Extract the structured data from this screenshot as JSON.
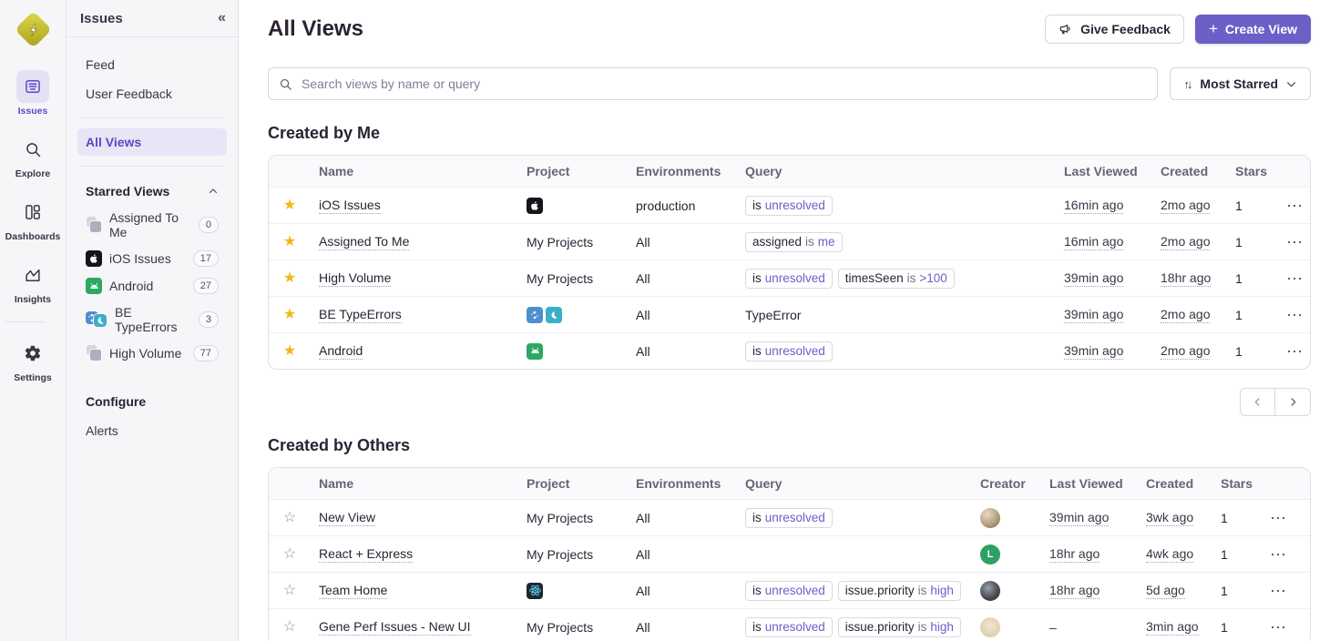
{
  "palette": {
    "accent": "#6C5FC7",
    "accent_text": "#584AC0",
    "star_filled": "#F2B712",
    "chip_value_text": "#6A5FC8",
    "sidebar_bg": "#F6F5F8"
  },
  "left_rail": {
    "logo_icon": "sentry-bolt-logo",
    "items": [
      {
        "label": "Issues",
        "icon": "issues",
        "active": true
      },
      {
        "label": "Explore",
        "icon": "explore",
        "active": false
      },
      {
        "label": "Dashboards",
        "icon": "dashboards",
        "active": false
      },
      {
        "label": "Insights",
        "icon": "insights",
        "active": false
      },
      {
        "label": "Settings",
        "icon": "settings",
        "active": false,
        "divider_before": true
      }
    ]
  },
  "sidebar": {
    "title": "Issues",
    "collapse_icon": "chevrons-left",
    "items_top": [
      "Feed",
      "User Feedback"
    ],
    "all_views_label": "All Views",
    "starred": {
      "title": "Starred Views",
      "items": [
        {
          "label": "Assigned To Me",
          "count": "0",
          "icon": "stacked"
        },
        {
          "label": "iOS Issues",
          "count": "17",
          "icon": "apple"
        },
        {
          "label": "Android",
          "count": "27",
          "icon": "android"
        },
        {
          "label": "BE TypeErrors",
          "count": "3",
          "icon": "python-pair"
        },
        {
          "label": "High Volume",
          "count": "77",
          "icon": "stacked"
        }
      ]
    },
    "configure": {
      "title": "Configure",
      "items": [
        "Alerts"
      ]
    }
  },
  "header": {
    "title": "All Views",
    "feedback_label": "Give Feedback",
    "create_label": "Create View"
  },
  "toolbar": {
    "search_placeholder": "Search views by name or query",
    "sort_label": "Most Starred"
  },
  "sections": [
    {
      "title": "Created by Me",
      "columns": [
        "Name",
        "Project",
        "Environments",
        "Query",
        "Last Viewed",
        "Created",
        "Stars"
      ],
      "has_creator": false,
      "rows": [
        {
          "starred": true,
          "name": "iOS Issues",
          "project": {
            "type": "icons",
            "icons": [
              "apple"
            ]
          },
          "environments": "production",
          "query": [
            {
              "type": "chip",
              "parts": [
                {
                  "text": "is",
                  "kind": "key"
                },
                {
                  "text": "unresolved",
                  "kind": "value"
                }
              ]
            }
          ],
          "last_viewed": "16min ago",
          "created": "2mo ago",
          "stars": "1"
        },
        {
          "starred": true,
          "name": "Assigned To Me",
          "project": {
            "type": "label",
            "label": "My Projects"
          },
          "environments": "All",
          "query": [
            {
              "type": "chip",
              "parts": [
                {
                  "text": "assigned",
                  "kind": "key"
                },
                {
                  "text": "is",
                  "kind": "op"
                },
                {
                  "text": "me",
                  "kind": "value"
                }
              ]
            }
          ],
          "last_viewed": "16min ago",
          "created": "2mo ago",
          "stars": "1"
        },
        {
          "starred": true,
          "name": "High Volume",
          "project": {
            "type": "label",
            "label": "My Projects"
          },
          "environments": "All",
          "query": [
            {
              "type": "chip",
              "parts": [
                {
                  "text": "is",
                  "kind": "key"
                },
                {
                  "text": "unresolved",
                  "kind": "value"
                }
              ]
            },
            {
              "type": "chip",
              "parts": [
                {
                  "text": "timesSeen",
                  "kind": "key"
                },
                {
                  "text": "is",
                  "kind": "op"
                },
                {
                  "text": ">100",
                  "kind": "value"
                }
              ]
            }
          ],
          "last_viewed": "39min ago",
          "created": "18hr ago",
          "stars": "1"
        },
        {
          "starred": true,
          "name": "BE TypeErrors",
          "project": {
            "type": "icons",
            "icons": [
              "python",
              "crescent"
            ]
          },
          "environments": "All",
          "query": [
            {
              "type": "text",
              "text": "TypeError"
            }
          ],
          "last_viewed": "39min ago",
          "created": "2mo ago",
          "stars": "1"
        },
        {
          "starred": true,
          "name": "Android",
          "project": {
            "type": "icons",
            "icons": [
              "android"
            ]
          },
          "environments": "All",
          "query": [
            {
              "type": "chip",
              "parts": [
                {
                  "text": "is",
                  "kind": "key"
                },
                {
                  "text": "unresolved",
                  "kind": "value"
                }
              ]
            }
          ],
          "last_viewed": "39min ago",
          "created": "2mo ago",
          "stars": "1"
        }
      ]
    },
    {
      "title": "Created by Others",
      "columns": [
        "Name",
        "Project",
        "Environments",
        "Query",
        "Creator",
        "Last Viewed",
        "Created",
        "Stars"
      ],
      "has_creator": true,
      "rows": [
        {
          "starred": false,
          "name": "New View",
          "project": {
            "type": "label",
            "label": "My Projects"
          },
          "environments": "All",
          "query": [
            {
              "type": "chip",
              "parts": [
                {
                  "text": "is",
                  "kind": "key"
                },
                {
                  "text": "unresolved",
                  "kind": "value"
                }
              ]
            }
          ],
          "creator": {
            "kind": "photo",
            "palette": "tan"
          },
          "last_viewed": "39min ago",
          "created": "3wk ago",
          "stars": "1"
        },
        {
          "starred": false,
          "name": "React + Express",
          "project": {
            "type": "label",
            "label": "My Projects"
          },
          "environments": "All",
          "query": [],
          "creator": {
            "kind": "letter",
            "letter": "L",
            "bg": "#2BA164"
          },
          "last_viewed": "18hr ago",
          "created": "4wk ago",
          "stars": "1"
        },
        {
          "starred": false,
          "name": "Team Home",
          "project": {
            "type": "icons",
            "icons": [
              "react"
            ]
          },
          "environments": "All",
          "query": [
            {
              "type": "chip",
              "parts": [
                {
                  "text": "is",
                  "kind": "key"
                },
                {
                  "text": "unresolved",
                  "kind": "value"
                }
              ]
            },
            {
              "type": "chip",
              "parts": [
                {
                  "text": "issue.priority",
                  "kind": "key"
                },
                {
                  "text": "is",
                  "kind": "op"
                },
                {
                  "text": "high",
                  "kind": "value"
                }
              ]
            }
          ],
          "creator": {
            "kind": "photo",
            "palette": "dark"
          },
          "last_viewed": "18hr ago",
          "created": "5d ago",
          "stars": "1"
        },
        {
          "starred": false,
          "name": "Gene Perf Issues - New UI",
          "project": {
            "type": "label",
            "label": "My Projects"
          },
          "environments": "All",
          "query": [
            {
              "type": "chip",
              "parts": [
                {
                  "text": "is",
                  "kind": "key"
                },
                {
                  "text": "unresolved",
                  "kind": "value"
                }
              ]
            },
            {
              "type": "chip",
              "parts": [
                {
                  "text": "issue.priority",
                  "kind": "key"
                },
                {
                  "text": "is",
                  "kind": "op"
                },
                {
                  "text": "high",
                  "kind": "value"
                }
              ]
            }
          ],
          "creator": {
            "kind": "photo",
            "palette": "beige"
          },
          "last_viewed": "–",
          "created": "3min ago",
          "stars": "1"
        }
      ]
    }
  ]
}
